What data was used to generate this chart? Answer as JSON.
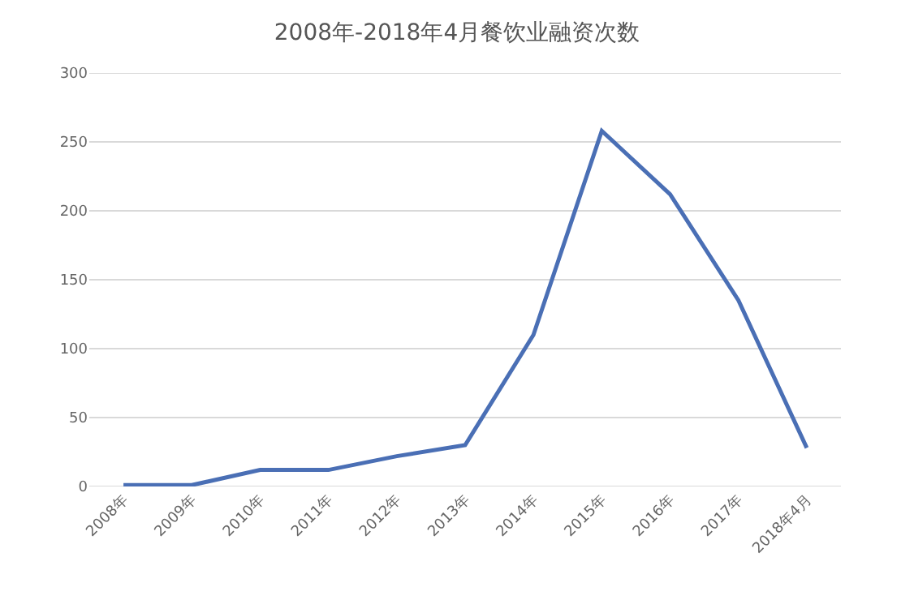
{
  "chart_data": {
    "type": "line",
    "title": "2008年-2018年4月餐饮业融资次数",
    "categories": [
      "2008年",
      "2009年",
      "2010年",
      "2011年",
      "2012年",
      "2013年",
      "2014年",
      "2015年",
      "2016年",
      "2017年",
      "2018年4月"
    ],
    "series": [
      {
        "color": "#4a6fb5",
        "values": [
          1,
          1,
          12,
          12,
          22,
          30,
          110,
          258,
          212,
          135,
          28
        ]
      }
    ],
    "ylim": [
      0,
      300
    ],
    "yticks": [
      0,
      50,
      100,
      150,
      200,
      250,
      300
    ],
    "grid": "y",
    "marker": "none",
    "line_style": "solid"
  }
}
